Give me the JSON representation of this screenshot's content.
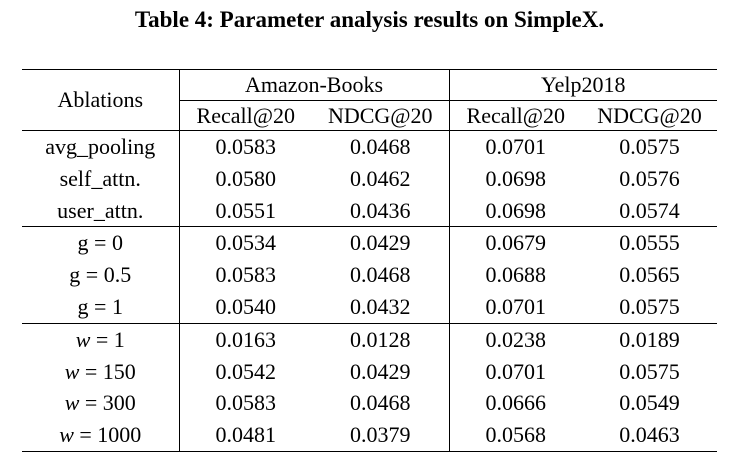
{
  "caption": "Table 4: Parameter analysis results on SimpleX.",
  "header": {
    "row_label": "Ablations",
    "groups": [
      "Amazon-Books",
      "Yelp2018"
    ],
    "metrics": [
      "Recall@20",
      "NDCG@20",
      "Recall@20",
      "NDCG@20"
    ]
  },
  "sections": [
    {
      "rows": [
        {
          "label": "avg_pooling",
          "values": [
            "0.0583",
            "0.0468",
            "0.0701",
            "0.0575"
          ],
          "bold": [
            true,
            true,
            true,
            false
          ]
        },
        {
          "label": "self_attn.",
          "values": [
            "0.0580",
            "0.0462",
            "0.0698",
            "0.0576"
          ],
          "bold": [
            false,
            false,
            false,
            true
          ]
        },
        {
          "label": "user_attn.",
          "values": [
            "0.0551",
            "0.0436",
            "0.0698",
            "0.0574"
          ],
          "bold": [
            false,
            false,
            false,
            false
          ]
        }
      ]
    },
    {
      "rows": [
        {
          "label": "g = 0",
          "values": [
            "0.0534",
            "0.0429",
            "0.0679",
            "0.0555"
          ],
          "bold": [
            false,
            false,
            false,
            false
          ]
        },
        {
          "label": "g = 0.5",
          "values": [
            "0.0583",
            "0.0468",
            "0.0688",
            "0.0565"
          ],
          "bold": [
            true,
            true,
            false,
            false
          ]
        },
        {
          "label": "g = 1",
          "values": [
            "0.0540",
            "0.0432",
            "0.0701",
            "0.0575"
          ],
          "bold": [
            false,
            false,
            true,
            true
          ]
        }
      ]
    },
    {
      "var": "w",
      "rows": [
        {
          "label": " = 1",
          "values": [
            "0.0163",
            "0.0128",
            "0.0238",
            "0.0189"
          ],
          "bold": [
            false,
            false,
            false,
            false
          ]
        },
        {
          "label": " = 150",
          "values": [
            "0.0542",
            "0.0429",
            "0.0701",
            "0.0575"
          ],
          "bold": [
            false,
            false,
            true,
            true
          ]
        },
        {
          "label": " = 300",
          "values": [
            "0.0583",
            "0.0468",
            "0.0666",
            "0.0549"
          ],
          "bold": [
            true,
            true,
            false,
            false
          ]
        },
        {
          "label": " = 1000",
          "values": [
            "0.0481",
            "0.0379",
            "0.0568",
            "0.0463"
          ],
          "bold": [
            false,
            false,
            false,
            false
          ]
        }
      ]
    }
  ]
}
